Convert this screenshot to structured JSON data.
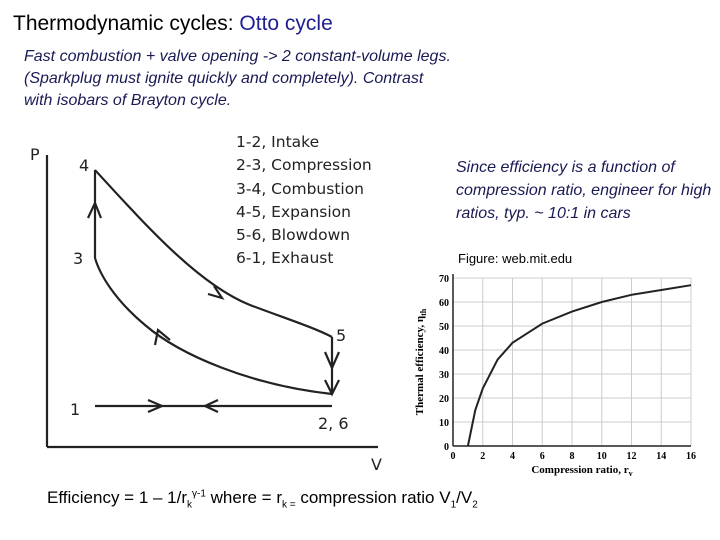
{
  "title": {
    "prefix": "Thermodynamic cycles:",
    "accent": "Otto cycle"
  },
  "intro": "Fast combustion + valve opening -> 2 constant-volume legs. (Sparkplug must ignite quickly and completely). Contrast with isobars of Brayton cycle.",
  "steps": [
    "1-2, Intake",
    "2-3, Compression",
    "3-4, Combustion",
    "4-5, Expansion",
    "5-6, Blowdown",
    "6-1, Exhaust"
  ],
  "pv_diagram": {
    "y_label": "P",
    "x_label": "V",
    "points": {
      "p4": "4",
      "p3": "3",
      "p5": "5",
      "p1": "1",
      "p26": "2, 6"
    }
  },
  "side_note": "Since efficiency is a function of compression ratio, engineer for high ratios, typ. ~ 10:1 in cars",
  "figure_credit": "Figure: web.mit.edu",
  "efficiency": {
    "prefix": "Efficiency = 1 – 1/r",
    "sub1": "k",
    "sup1": "γ-1",
    "middle": " where = r",
    "sub2": "k =",
    "suffix": " compression ratio V",
    "sub3": "1",
    "slash": "/V",
    "sub4": "2"
  },
  "chart_data": {
    "type": "line",
    "xlabel": "Compression ratio, r",
    "xlabel_sub": "v",
    "ylabel": "Thermal efficiency, η",
    "ylabel_sub": "th",
    "xlim": [
      0,
      16
    ],
    "ylim": [
      0,
      70
    ],
    "xticks": [
      0,
      2,
      4,
      6,
      8,
      10,
      12,
      14,
      16
    ],
    "yticks": [
      0,
      10,
      20,
      30,
      40,
      50,
      60,
      70
    ],
    "series": [
      {
        "x": [
          1,
          1.5,
          2,
          3,
          4,
          5,
          6,
          8,
          10,
          12,
          14,
          16
        ],
        "y": [
          0,
          15,
          24,
          36,
          43,
          47,
          51,
          56,
          60,
          63,
          65,
          67
        ]
      }
    ]
  }
}
